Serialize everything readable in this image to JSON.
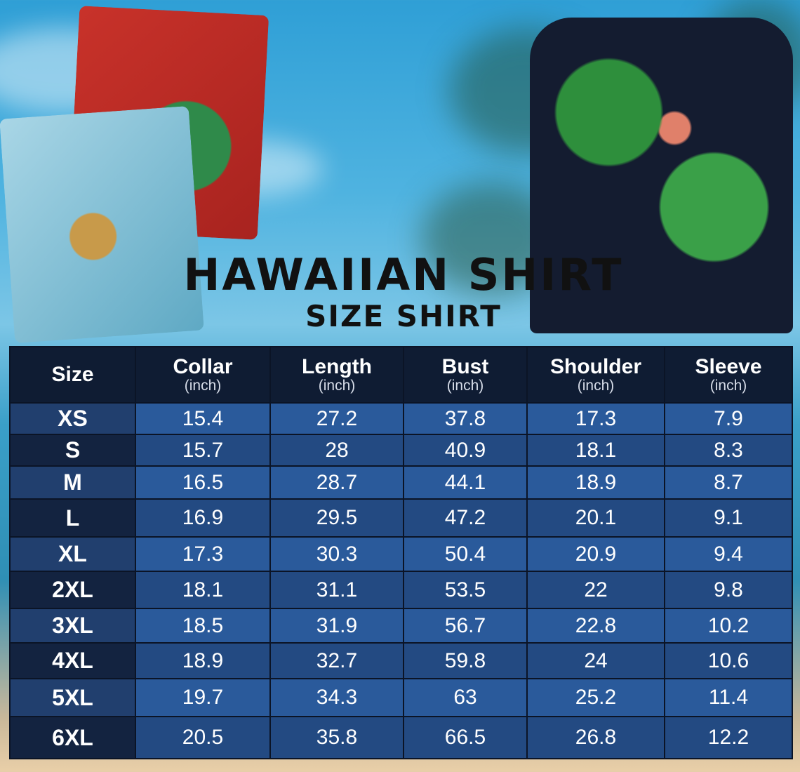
{
  "title": "HAWAIIAN SHIRT",
  "subtitle": "SIZE SHIRT",
  "table": {
    "headers": [
      {
        "label": "Size",
        "unit": ""
      },
      {
        "label": "Collar",
        "unit": "(inch)"
      },
      {
        "label": "Length",
        "unit": "(inch)"
      },
      {
        "label": "Bust",
        "unit": "(inch)"
      },
      {
        "label": "Shoulder",
        "unit": "(inch)"
      },
      {
        "label": "Sleeve",
        "unit": "(inch)"
      }
    ],
    "rows": [
      [
        "XS",
        "15.4",
        "27.2",
        "37.8",
        "17.3",
        "7.9"
      ],
      [
        "S",
        "15.7",
        "28",
        "40.9",
        "18.1",
        "8.3"
      ],
      [
        "M",
        "16.5",
        "28.7",
        "44.1",
        "18.9",
        "8.7"
      ],
      [
        "L",
        "16.9",
        "29.5",
        "47.2",
        "20.1",
        "9.1"
      ],
      [
        "XL",
        "17.3",
        "30.3",
        "50.4",
        "20.9",
        "9.4"
      ],
      [
        "2XL",
        "18.1",
        "31.1",
        "53.5",
        "22",
        "9.8"
      ],
      [
        "3XL",
        "18.5",
        "31.9",
        "56.7",
        "22.8",
        "10.2"
      ],
      [
        "4XL",
        "18.9",
        "32.7",
        "59.8",
        "24",
        "10.6"
      ],
      [
        "5XL",
        "19.7",
        "34.3",
        "63",
        "25.2",
        "11.4"
      ],
      [
        "6XL",
        "20.5",
        "35.8",
        "66.5",
        "26.8",
        "12.2"
      ]
    ]
  },
  "colors": {
    "header": "#0f1c33",
    "row_light": "#2a5a9b",
    "row_dark": "#234a82"
  }
}
